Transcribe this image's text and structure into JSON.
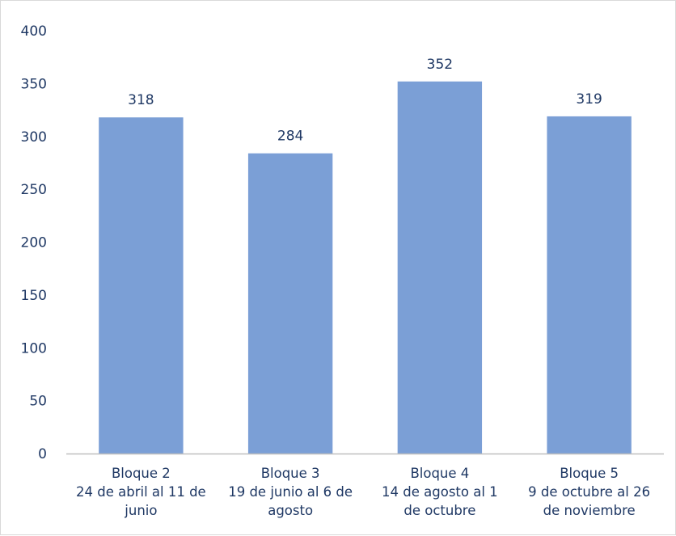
{
  "chart_data": {
    "type": "bar",
    "categories": [
      [
        "Bloque 2",
        "24 de abril al 11 de",
        "junio"
      ],
      [
        "Bloque 3",
        "19 de junio al 6 de",
        "agosto"
      ],
      [
        "Bloque 4",
        "14 de agosto al 1",
        "de octubre"
      ],
      [
        "Bloque 5",
        "9 de octubre al 26",
        "de noviembre"
      ]
    ],
    "values": [
      318,
      284,
      352,
      319
    ],
    "title": "",
    "xlabel": "",
    "ylabel": "",
    "ylim": [
      0,
      400
    ],
    "yticks": [
      0,
      50,
      100,
      150,
      200,
      250,
      300,
      350,
      400
    ],
    "grid": false,
    "legend": "none",
    "data_labels": true,
    "colors": {
      "bar": "#7b9fd6",
      "axis": "#bfbfbf",
      "text": "#1f3864"
    }
  }
}
